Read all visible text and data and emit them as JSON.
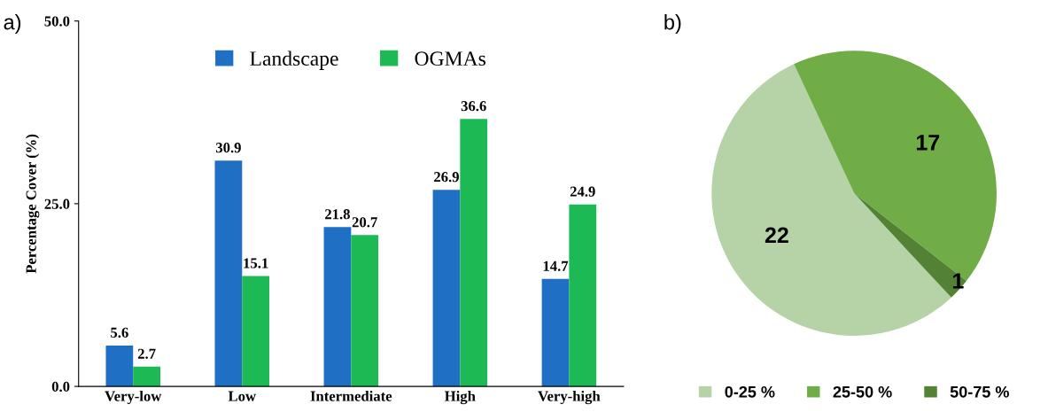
{
  "chart_data": [
    {
      "type": "bar",
      "annotations": [
        "a)"
      ],
      "ylabel": "Percentage Cover (%)",
      "categories": [
        "Very-low",
        "Low",
        "Intermediate",
        "High",
        "Very-high"
      ],
      "series": [
        {
          "name": "Landscape",
          "color": "#1f6fc5",
          "values": [
            5.6,
            30.9,
            21.8,
            26.9,
            14.7
          ]
        },
        {
          "name": "OGMAs",
          "color": "#1db954",
          "values": [
            2.7,
            15.1,
            20.7,
            36.6,
            24.9
          ]
        }
      ],
      "ylim": [
        0,
        50
      ],
      "yticks": [
        {
          "value": 0,
          "label": "0.0"
        },
        {
          "value": 25,
          "label": "25.0"
        },
        {
          "value": 50,
          "label": "50.0"
        }
      ],
      "data_labels": true,
      "legend": "top",
      "grid": false
    },
    {
      "type": "pie",
      "annotations": [
        "b)"
      ],
      "categories": [
        "0-25 %",
        "25-50 %",
        "50-75 %"
      ],
      "values": [
        22,
        17,
        1
      ],
      "colors": [
        "#b5d3a7",
        "#70ad47",
        "#548235"
      ],
      "data_labels": true,
      "legend": "bottom"
    }
  ]
}
